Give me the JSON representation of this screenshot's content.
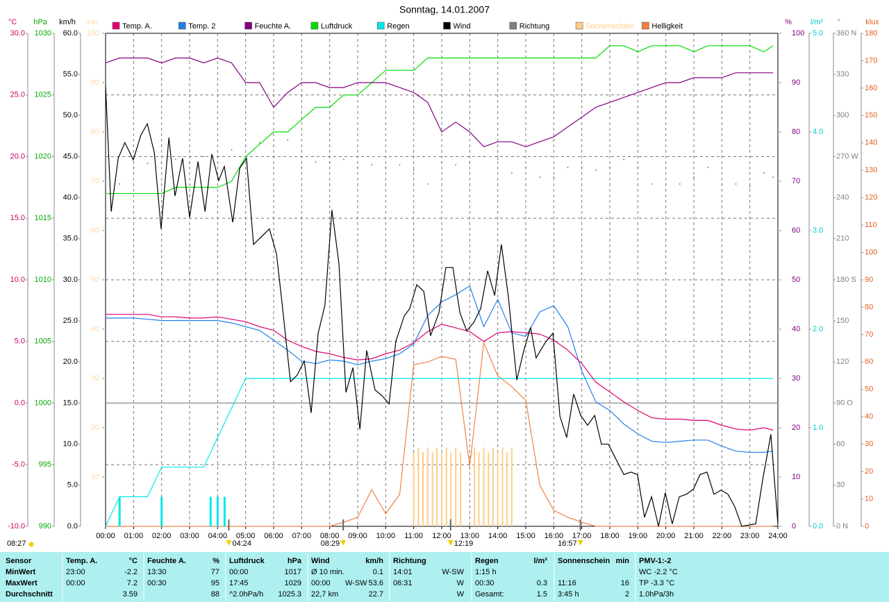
{
  "chart_data": {
    "type": "line",
    "title": "Sonntag, 14.01.2007",
    "xlim": [
      0,
      24
    ],
    "xticks": [
      {
        "value": 0,
        "label": "00:00"
      },
      {
        "value": 1,
        "label": "01:00"
      },
      {
        "value": 2,
        "label": "02:00"
      },
      {
        "value": 3,
        "label": "03:00"
      },
      {
        "value": 4,
        "label": "04:00"
      },
      {
        "value": 5,
        "label": "05:00"
      },
      {
        "value": 6,
        "label": "06:00"
      },
      {
        "value": 7,
        "label": "07:00"
      },
      {
        "value": 8,
        "label": "08:00"
      },
      {
        "value": 9,
        "label": "09:00"
      },
      {
        "value": 10,
        "label": "10:00"
      },
      {
        "value": 11,
        "label": "11:00"
      },
      {
        "value": 12,
        "label": "12:00"
      },
      {
        "value": 13,
        "label": "13:00"
      },
      {
        "value": 14,
        "label": "14:00"
      },
      {
        "value": 15,
        "label": "15:00"
      },
      {
        "value": 16,
        "label": "16:00"
      },
      {
        "value": 17,
        "label": "17:00"
      },
      {
        "value": 18,
        "label": "18:00"
      },
      {
        "value": 19,
        "label": "19:00"
      },
      {
        "value": 20,
        "label": "20:00"
      },
      {
        "value": 21,
        "label": "21:00"
      },
      {
        "value": 22,
        "label": "22:00"
      },
      {
        "value": 23,
        "label": "23:00"
      },
      {
        "value": 24,
        "label": "24:00"
      }
    ],
    "grid": true,
    "grid_axis": "temp",
    "axes": {
      "temp": {
        "label": "°C",
        "color": "#cc0066",
        "lim": [
          -10,
          30
        ],
        "ticks": [
          {
            "value": -10,
            "label": "-10.0"
          },
          {
            "value": -5,
            "label": "-5.0"
          },
          {
            "value": 0,
            "label": "0.0"
          },
          {
            "value": 5,
            "label": "5.0"
          },
          {
            "value": 10,
            "label": "10.0"
          },
          {
            "value": 15,
            "label": "15.0"
          },
          {
            "value": 20,
            "label": "20.0"
          },
          {
            "value": 25,
            "label": "25.0"
          },
          {
            "value": 30,
            "label": "30.0"
          }
        ]
      },
      "press": {
        "label": "hPa",
        "color": "#00aa00",
        "lim": [
          990,
          1030
        ],
        "ticks": [
          990,
          995,
          1000,
          1005,
          1010,
          1015,
          1020,
          1025,
          1030
        ]
      },
      "wind": {
        "label": "km/h",
        "color": "#000000",
        "lim": [
          0,
          60
        ],
        "ticks": [
          {
            "value": 0,
            "label": "0.0"
          },
          {
            "value": 5,
            "label": "5.0"
          },
          {
            "value": 10,
            "label": "10.0"
          },
          {
            "value": 15,
            "label": "15.0"
          },
          {
            "value": 20,
            "label": "20.0"
          },
          {
            "value": 25,
            "label": "25.0"
          },
          {
            "value": 30,
            "label": "30.0"
          },
          {
            "value": 35,
            "label": "35.0"
          },
          {
            "value": 40,
            "label": "40.0"
          },
          {
            "value": 45,
            "label": "45.0"
          },
          {
            "value": 50,
            "label": "50.0"
          },
          {
            "value": 55,
            "label": "55.0"
          },
          {
            "value": 60,
            "label": "60.0"
          }
        ]
      },
      "min": {
        "label": "min",
        "color": "#ffd8a0",
        "lim": [
          0,
          100
        ],
        "ticks": [
          10,
          20,
          30,
          40,
          50,
          60,
          70,
          80,
          90,
          100
        ]
      },
      "hum": {
        "label": "%",
        "color": "#800080",
        "lim": [
          0,
          100
        ],
        "ticks": [
          0,
          10,
          20,
          30,
          40,
          50,
          60,
          70,
          80,
          90,
          100
        ]
      },
      "rain": {
        "label": "l/m²",
        "color": "#00cccc",
        "lim": [
          0,
          5
        ],
        "ticks": [
          {
            "value": 0,
            "label": "0.0"
          },
          {
            "value": 1,
            "label": "1.0"
          },
          {
            "value": 2,
            "label": "2.0"
          },
          {
            "value": 3,
            "label": "3.0"
          },
          {
            "value": 4,
            "label": "4.0"
          },
          {
            "value": 5,
            "label": "5.0"
          }
        ]
      },
      "dir": {
        "label": "°",
        "color": "#808080",
        "lim": [
          0,
          360
        ],
        "ticks": [
          {
            "value": 0,
            "label": "0 N"
          },
          {
            "value": 30,
            "label": "30"
          },
          {
            "value": 60,
            "label": "60"
          },
          {
            "value": 90,
            "label": "90 O"
          },
          {
            "value": 120,
            "label": "120"
          },
          {
            "value": 150,
            "label": "150"
          },
          {
            "value": 180,
            "label": "180 S"
          },
          {
            "value": 210,
            "label": "210"
          },
          {
            "value": 240,
            "label": "240"
          },
          {
            "value": 270,
            "label": "270 W"
          },
          {
            "value": 300,
            "label": "300"
          },
          {
            "value": 330,
            "label": "330"
          },
          {
            "value": 360,
            "label": "360 N"
          }
        ]
      },
      "klux": {
        "label": "klux",
        "color": "#e06020",
        "lim": [
          0,
          180
        ],
        "ticks": [
          0,
          10,
          20,
          30,
          40,
          50,
          60,
          70,
          80,
          90,
          100,
          110,
          120,
          130,
          140,
          150,
          160,
          170,
          180
        ]
      }
    },
    "x": [
      0,
      0.5,
      1,
      1.5,
      2,
      2.5,
      3,
      3.5,
      4,
      4.5,
      5,
      5.5,
      6,
      6.5,
      7,
      7.5,
      8,
      8.5,
      9,
      9.5,
      10,
      10.5,
      11,
      11.5,
      12,
      12.5,
      13,
      13.5,
      14,
      14.5,
      15,
      15.5,
      16,
      16.5,
      17,
      17.5,
      18,
      18.5,
      19,
      19.5,
      20,
      20.5,
      21,
      21.5,
      22,
      22.5,
      23,
      23.5,
      23.83
    ],
    "series": [
      {
        "name": "Temp. A.",
        "color": "#e0006f",
        "axis": "temp",
        "style": "line",
        "values": [
          7.2,
          7.2,
          7.2,
          7.2,
          7.0,
          7.0,
          6.9,
          6.9,
          7.0,
          6.8,
          6.6,
          6.2,
          5.9,
          5.1,
          4.6,
          4.2,
          4.0,
          3.7,
          3.5,
          3.6,
          4.0,
          4.3,
          4.9,
          5.8,
          6.4,
          6.1,
          5.8,
          5.0,
          5.7,
          5.8,
          5.7,
          5.6,
          5.1,
          4.3,
          3.2,
          1.7,
          0.9,
          0.1,
          -0.6,
          -1.2,
          -1.3,
          -1.3,
          -1.4,
          -1.4,
          -1.8,
          -2.1,
          -2.2,
          -2.0,
          -2.2
        ]
      },
      {
        "name": "Temp. 2",
        "color": "#2080e8",
        "axis": "temp",
        "style": "line",
        "values": [
          6.9,
          6.9,
          6.9,
          6.8,
          6.7,
          6.7,
          6.7,
          6.7,
          6.7,
          6.5,
          6.2,
          5.9,
          5.1,
          4.3,
          3.4,
          3.2,
          3.5,
          3.4,
          3.1,
          3.4,
          3.6,
          4.0,
          4.8,
          7.1,
          8.2,
          8.8,
          9.5,
          6.2,
          8.4,
          5.7,
          5.4,
          7.4,
          7.9,
          6.2,
          2.6,
          0.1,
          -0.6,
          -1.7,
          -2.5,
          -3.1,
          -3.2,
          -3.1,
          -3.0,
          -3.0,
          -3.5,
          -3.9,
          -4.0,
          -4.0,
          -3.9
        ]
      },
      {
        "name": "Feuchte A.",
        "color": "#800080",
        "axis": "hum",
        "style": "line",
        "values": [
          94,
          95,
          95,
          95,
          94,
          95,
          95,
          94,
          95,
          94,
          90,
          90,
          85,
          88,
          90,
          90,
          89,
          89,
          90,
          90,
          90,
          89,
          88,
          86,
          80,
          82,
          80,
          77,
          78,
          78,
          77,
          78,
          79,
          81,
          83,
          85,
          86,
          87,
          88,
          89,
          90,
          90,
          91,
          91,
          91,
          92,
          92,
          92,
          92
        ]
      },
      {
        "name": "Luftdruck",
        "color": "#00dd00",
        "axis": "press",
        "style": "line",
        "values": [
          1017,
          1017,
          1017,
          1017,
          1017,
          1017.5,
          1017.5,
          1017.5,
          1017.5,
          1018,
          1020,
          1021,
          1022,
          1022,
          1023,
          1024,
          1024,
          1025,
          1025,
          1026,
          1027,
          1027,
          1027,
          1028,
          1028,
          1028,
          1028,
          1028,
          1028,
          1028,
          1028,
          1028,
          1028,
          1028,
          1028,
          1028,
          1029,
          1029,
          1028.5,
          1029,
          1029,
          1029,
          1028.5,
          1029,
          1029,
          1029,
          1029,
          1028.5,
          1029
        ]
      },
      {
        "name": "Regen",
        "color": "#00e8e8",
        "axis": "rain",
        "style": "line",
        "values": [
          0,
          0.3,
          0.3,
          0.3,
          0.6,
          0.6,
          0.6,
          0.6,
          0.9,
          1.2,
          1.5,
          1.5,
          1.5,
          1.5,
          1.5,
          1.5,
          1.5,
          1.5,
          1.5,
          1.5,
          1.5,
          1.5,
          1.5,
          1.5,
          1.5,
          1.5,
          1.5,
          1.5,
          1.5,
          1.5,
          1.5,
          1.5,
          1.5,
          1.5,
          1.5,
          1.5,
          1.5,
          1.5,
          1.5,
          1.5,
          1.5,
          1.5,
          1.5,
          1.5,
          1.5,
          1.5,
          1.5,
          1.5,
          1.5
        ],
        "bars_x": [
          0.5,
          2.0,
          3.75,
          4.0,
          4.25
        ],
        "bars": [
          0.3,
          0.3,
          0.3,
          0.3,
          0.3
        ]
      },
      {
        "name": "Wind",
        "color": "#000000",
        "axis": "wind",
        "style": "line",
        "x": [
          0,
          0.2,
          0.45,
          0.69,
          0.99,
          1.26,
          1.49,
          1.74,
          1.98,
          2.26,
          2.48,
          2.75,
          3.0,
          3.3,
          3.55,
          3.79,
          4.04,
          4.24,
          4.54,
          4.79,
          5.03,
          5.28,
          5.85,
          6.1,
          6.27,
          6.6,
          6.84,
          7.09,
          7.34,
          7.59,
          7.83,
          8.08,
          8.33,
          8.58,
          8.83,
          9.08,
          9.32,
          9.62,
          9.87,
          10.12,
          10.36,
          10.66,
          10.86,
          11.11,
          11.36,
          11.6,
          11.9,
          12.15,
          12.4,
          12.65,
          12.89,
          13.14,
          13.39,
          13.64,
          13.89,
          14.13,
          14.38,
          14.68,
          14.93,
          15.17,
          15.37,
          15.72,
          15.97,
          16.22,
          16.46,
          16.71,
          16.96,
          17.21,
          17.46,
          17.7,
          17.95,
          18.2,
          18.5,
          18.75,
          18.99,
          19.24,
          19.49,
          19.74,
          19.98,
          20.23,
          20.48,
          20.73,
          20.98,
          21.22,
          21.47,
          21.72,
          21.97,
          22.22,
          22.46,
          22.71,
          23.21,
          23.46,
          23.75,
          24.0
        ],
        "values": [
          53.6,
          38.3,
          44.8,
          46.7,
          44.6,
          47.6,
          49.0,
          45.5,
          36.2,
          47.3,
          40.2,
          44.8,
          37.6,
          44.4,
          38.3,
          45.3,
          42.1,
          43.8,
          37.0,
          43.6,
          44.8,
          34.3,
          36.2,
          33.2,
          28.1,
          17.6,
          18.4,
          20.1,
          13.8,
          23.5,
          26.9,
          38.5,
          32.0,
          16.3,
          19.3,
          11.8,
          21.4,
          16.6,
          15.9,
          14.9,
          22.5,
          25.6,
          26.5,
          29.4,
          28.6,
          23.2,
          26.0,
          31.5,
          31.5,
          26.0,
          23.8,
          24.8,
          26.5,
          31.1,
          28.1,
          34.3,
          27.9,
          17.8,
          21.4,
          24.2,
          20.5,
          22.5,
          23.5,
          13.4,
          10.8,
          16.1,
          13.5,
          12.3,
          13.5,
          10.0,
          10.0,
          8.3,
          6.3,
          6.6,
          6.3,
          1.1,
          3.6,
          0,
          4.1,
          0.3,
          3.6,
          3.9,
          4.5,
          6.3,
          6.6,
          3.9,
          4.4,
          3.9,
          2.4,
          0,
          0.3,
          5.7,
          11.2,
          0.3
        ]
      },
      {
        "name": "Richtung",
        "color": "#808080",
        "axis": "dir",
        "style": "dots",
        "values": [
          250,
          250,
          262,
          265,
          265,
          268,
          265,
          270,
          270,
          275,
          278,
          280,
          278,
          282,
          262,
          266,
          266,
          268,
          262,
          264,
          262,
          264,
          260,
          250,
          266,
          264,
          266,
          270,
          268,
          258,
          262,
          255,
          255,
          262,
          262,
          260,
          262,
          268,
          262,
          250,
          250,
          250,
          255,
          262,
          250,
          250,
          248,
          258,
          255
        ]
      },
      {
        "name": "Sonnenschein",
        "color": "#ffcc88",
        "axis": "min",
        "style": "bars",
        "x": [
          11.0,
          11.17,
          11.33,
          11.5,
          11.67,
          11.83,
          12.0,
          12.17,
          12.33,
          12.5,
          12.67,
          13.17,
          13.33,
          13.5,
          13.67,
          13.83,
          14.0,
          14.17,
          14.33,
          14.5
        ],
        "values": [
          15,
          16,
          15,
          16,
          15,
          16,
          15,
          16,
          15,
          16,
          15,
          16,
          15,
          16,
          15,
          16,
          15,
          16,
          15,
          16
        ]
      },
      {
        "name": "Helligkeit",
        "color": "#f08040",
        "axis": "klux",
        "style": "line",
        "values": [
          0,
          0,
          0,
          0,
          0,
          0,
          0,
          0,
          0,
          0,
          0,
          0,
          0,
          0,
          0,
          0,
          0,
          1.5,
          3.3,
          13.4,
          4.6,
          11.7,
          59,
          60,
          62,
          61,
          22,
          67,
          55,
          51,
          46,
          15,
          5.8,
          3.3,
          1.5,
          0,
          0,
          0,
          0,
          0,
          0,
          0,
          0,
          0,
          0,
          0,
          0,
          0,
          0
        ]
      }
    ],
    "events": [
      "04:24",
      "08:29",
      "12:19",
      "16:57"
    ],
    "moon": "08:27"
  },
  "stats_table": {
    "header": [
      "Sensor",
      "Temp. A.",
      "°C",
      "Feuchte A.",
      "%",
      "Luftdruck",
      "hPa",
      "Wind",
      null,
      "km/h",
      "Richtung",
      null,
      "Regen",
      "l/m²",
      "Sonnenschein",
      "min",
      "PMV-1:-2"
    ],
    "rows": [
      [
        "MinWert",
        "23:00",
        "-2.2",
        "13:30",
        "77",
        "00:00",
        "1017",
        "Ø 10 min.",
        null,
        "0.1",
        "14:01",
        "W-SW",
        "1:15 h",
        null,
        null,
        null,
        "WC -2.2 °C"
      ],
      [
        "MaxWert",
        "00:00",
        "7.2",
        "00:30",
        "95",
        "17:45",
        "1029",
        "00:00",
        "W-SW",
        "53.6",
        "06:31",
        "W",
        "00:30",
        "0.3",
        "11:16",
        "16",
        "TP -3.3 °C"
      ],
      [
        "Durchschnitt",
        null,
        "3.59",
        null,
        "88",
        "^2.0hPa/h",
        "1025.3",
        "22,7 km",
        null,
        "22.7",
        null,
        "W",
        "Gesamt:",
        "1.5",
        "3:45 h",
        "2",
        "1.0hPa/3h"
      ]
    ]
  }
}
